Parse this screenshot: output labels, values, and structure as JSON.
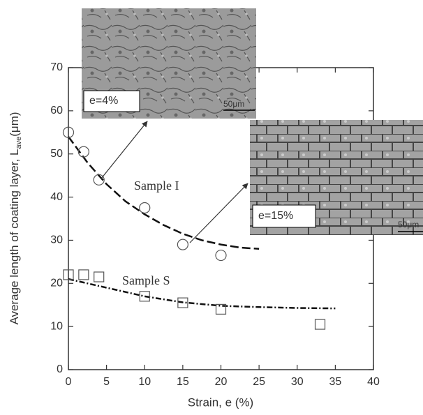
{
  "chart_data": {
    "type": "scatter",
    "xlabel": "Strain, e (%)",
    "ylabel": {
      "text": "Average length of coating layer, L",
      "subscript": "ave",
      "suffix": "(μm)"
    },
    "xlim": [
      0,
      40
    ],
    "xticks": [
      0,
      5,
      10,
      15,
      20,
      25,
      30,
      35,
      40
    ],
    "ylim": [
      0,
      70
    ],
    "yticks": [
      0,
      10,
      20,
      30,
      40,
      50,
      60,
      70
    ],
    "series": [
      {
        "name": "Sample I",
        "marker": "circle",
        "x": [
          0,
          2,
          4,
          10,
          15,
          20
        ],
        "values": [
          55,
          50.5,
          44,
          37.5,
          29,
          26.5
        ],
        "fit": {
          "style": "dashed",
          "x": [
            0,
            2.5,
            5,
            7.5,
            10,
            12.5,
            15,
            17.5,
            20,
            22.5,
            25
          ],
          "values": [
            54,
            48,
            43,
            39,
            36,
            33.5,
            31.5,
            30,
            29,
            28.3,
            28
          ]
        }
      },
      {
        "name": "Sample S",
        "marker": "square",
        "x": [
          0,
          2,
          4,
          10,
          15,
          20,
          33
        ],
        "values": [
          22,
          22,
          21.5,
          17,
          15.5,
          14,
          10.5
        ],
        "fit": {
          "style": "dashdot",
          "x": [
            0,
            5,
            10,
            15,
            20,
            25,
            30,
            35
          ],
          "values": [
            21,
            19,
            17,
            15.6,
            14.8,
            14.5,
            14.3,
            14.2
          ]
        }
      }
    ],
    "insets": [
      {
        "label": "e=4%",
        "scale_bar": "50μm"
      },
      {
        "label": "e=15%",
        "scale_bar": "50μm"
      }
    ]
  }
}
